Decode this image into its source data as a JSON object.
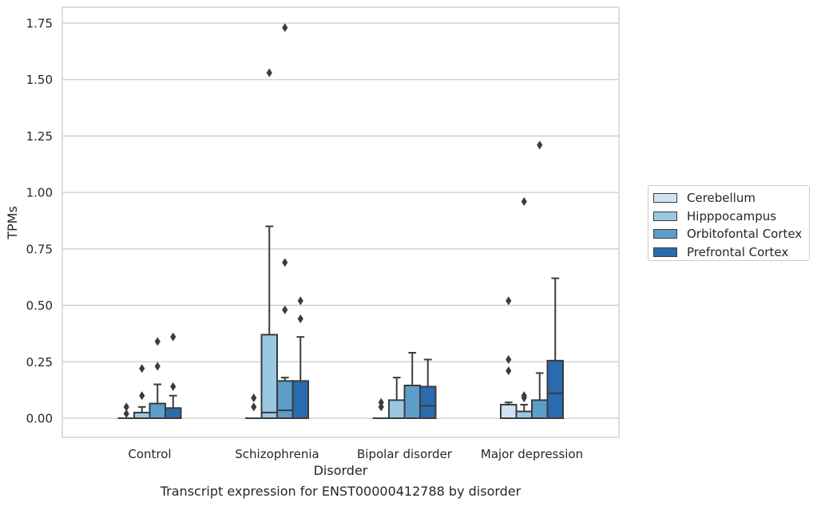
{
  "chart_data": {
    "type": "box",
    "caption": "Transcript expression for ENST00000412788 by disorder",
    "xlabel": "Disorder",
    "ylabel": "TPMs",
    "ylim": [
      -0.085,
      1.82
    ],
    "yticks": [
      0.0,
      0.25,
      0.5,
      0.75,
      1.0,
      1.25,
      1.5,
      1.75
    ],
    "ytick_labels": [
      "0.00",
      "0.25",
      "0.50",
      "0.75",
      "1.00",
      "1.25",
      "1.50",
      "1.75"
    ],
    "grid": "horizontal",
    "legend_position": "right",
    "categories": [
      "Control",
      "Schizophrenia",
      "Bipolar disorder",
      "Major depression"
    ],
    "series": [
      {
        "name": "Cerebellum",
        "color": "#d1e2f2",
        "boxes": [
          {
            "q1": 0.0,
            "median": 0.0,
            "q3": 0.0,
            "whisker_low": 0.0,
            "whisker_high": 0.0,
            "outliers": [
              0.05,
              0.02
            ]
          },
          {
            "q1": 0.0,
            "median": 0.0,
            "q3": 0.0,
            "whisker_low": 0.0,
            "whisker_high": 0.0,
            "outliers": [
              0.09,
              0.05
            ]
          },
          {
            "q1": 0.0,
            "median": 0.0,
            "q3": 0.0,
            "whisker_low": 0.0,
            "whisker_high": 0.0,
            "outliers": [
              0.07,
              0.05
            ]
          },
          {
            "q1": 0.0,
            "median": 0.0,
            "q3": 0.06,
            "whisker_low": 0.0,
            "whisker_high": 0.07,
            "outliers": [
              0.52,
              0.26,
              0.21
            ]
          }
        ]
      },
      {
        "name": "Hipppocampus",
        "color": "#9ac8e0",
        "boxes": [
          {
            "q1": 0.0,
            "median": 0.0,
            "q3": 0.025,
            "whisker_low": 0.0,
            "whisker_high": 0.05,
            "outliers": [
              0.22,
              0.1
            ]
          },
          {
            "q1": 0.0,
            "median": 0.025,
            "q3": 0.37,
            "whisker_low": 0.0,
            "whisker_high": 0.85,
            "outliers": [
              1.53
            ]
          },
          {
            "q1": 0.0,
            "median": 0.0,
            "q3": 0.08,
            "whisker_low": 0.0,
            "whisker_high": 0.18,
            "outliers": []
          },
          {
            "q1": 0.0,
            "median": 0.0,
            "q3": 0.03,
            "whisker_low": 0.0,
            "whisker_high": 0.06,
            "outliers": [
              0.96,
              0.1,
              0.09
            ]
          }
        ]
      },
      {
        "name": "Orbitofontal Cortex",
        "color": "#5a9ec9",
        "boxes": [
          {
            "q1": 0.0,
            "median": 0.0,
            "q3": 0.065,
            "whisker_low": 0.0,
            "whisker_high": 0.15,
            "outliers": [
              0.34,
              0.23
            ]
          },
          {
            "q1": 0.0,
            "median": 0.035,
            "q3": 0.165,
            "whisker_low": 0.0,
            "whisker_high": 0.18,
            "outliers": [
              1.73,
              0.69,
              0.48
            ]
          },
          {
            "q1": 0.0,
            "median": 0.0,
            "q3": 0.145,
            "whisker_low": 0.0,
            "whisker_high": 0.29,
            "outliers": []
          },
          {
            "q1": 0.0,
            "median": 0.0,
            "q3": 0.08,
            "whisker_low": 0.0,
            "whisker_high": 0.2,
            "outliers": [
              1.21
            ]
          }
        ]
      },
      {
        "name": "Prefrontal Cortex",
        "color": "#2a6aaf",
        "boxes": [
          {
            "q1": 0.0,
            "median": 0.0,
            "q3": 0.045,
            "whisker_low": 0.0,
            "whisker_high": 0.1,
            "outliers": [
              0.36,
              0.14
            ]
          },
          {
            "q1": 0.0,
            "median": 0.0,
            "q3": 0.165,
            "whisker_low": 0.0,
            "whisker_high": 0.36,
            "outliers": [
              0.52,
              0.44
            ]
          },
          {
            "q1": 0.0,
            "median": 0.055,
            "q3": 0.14,
            "whisker_low": 0.0,
            "whisker_high": 0.26,
            "outliers": []
          },
          {
            "q1": 0.0,
            "median": 0.11,
            "q3": 0.255,
            "whisker_low": 0.0,
            "whisker_high": 0.62,
            "outliers": []
          }
        ]
      }
    ]
  }
}
